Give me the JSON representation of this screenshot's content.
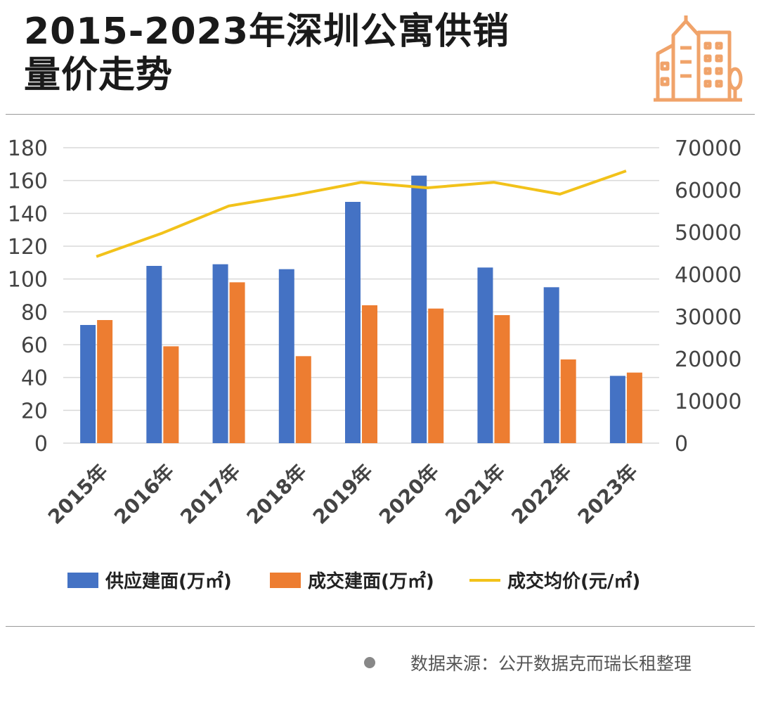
{
  "title": {
    "line1": "2015-2023年深圳公寓供销",
    "line2": "量价走势"
  },
  "logo": {
    "icon": "city-buildings-icon",
    "color": "#f0a36a"
  },
  "source": "数据来源：公开数据克而瑞长租整理",
  "colors": {
    "supply": "#4472c4",
    "transaction": "#ed7d31",
    "price": "#f2c21a",
    "grid": "#d9d9d9",
    "axis_text": "#444444"
  },
  "chart_data": {
    "type": "bar",
    "categories": [
      "2015年",
      "2016年",
      "2017年",
      "2018年",
      "2019年",
      "2020年",
      "2021年",
      "2022年",
      "2023年"
    ],
    "series": [
      {
        "name": "供应建面(万㎡)",
        "type": "bar",
        "axis": "left",
        "values": [
          72,
          108,
          109,
          106,
          147,
          163,
          107,
          95,
          41
        ]
      },
      {
        "name": "成交建面(万㎡)",
        "type": "bar",
        "axis": "left",
        "values": [
          75,
          59,
          98,
          53,
          84,
          82,
          78,
          51,
          43
        ]
      },
      {
        "name": "成交均价(元/㎡)",
        "type": "line",
        "axis": "right",
        "values": [
          44200,
          49800,
          56200,
          58800,
          61800,
          60500,
          61800,
          59000,
          64500
        ]
      }
    ],
    "y_left": {
      "min": 0,
      "max": 180,
      "ticks": [
        0,
        20,
        40,
        60,
        80,
        100,
        120,
        140,
        160,
        180
      ]
    },
    "y_right": {
      "min": 0,
      "max": 70000,
      "ticks": [
        0,
        10000,
        20000,
        30000,
        40000,
        50000,
        60000,
        70000
      ]
    },
    "grid": true,
    "legend_position": "bottom"
  }
}
